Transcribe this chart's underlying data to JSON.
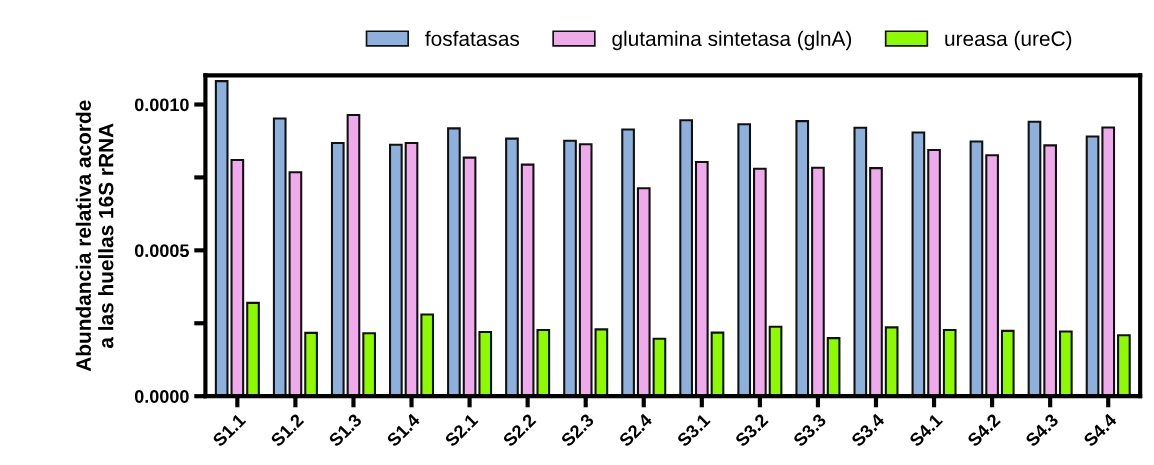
{
  "chart_data": {
    "type": "bar",
    "ylabel": "Abundancia relativa acorde\na las huellas 16S rRNA",
    "categories": [
      "S1.1",
      "S1.2",
      "S1.3",
      "S1.4",
      "S2.1",
      "S2.2",
      "S2.3",
      "S2.4",
      "S3.1",
      "S3.2",
      "S3.3",
      "S3.4",
      "S4.1",
      "S4.2",
      "S4.3",
      "S4.4"
    ],
    "series": [
      {
        "name": "fosfatasas",
        "color": "#8eb0dc",
        "values": [
          0.00108,
          0.000952,
          0.000868,
          0.000862,
          0.000918,
          0.000883,
          0.000876,
          0.000914,
          0.000946,
          0.000932,
          0.000943,
          0.00092,
          0.000904,
          0.000873,
          0.000941,
          0.00089
        ]
      },
      {
        "name": "glutamina sintetasa (glnA)",
        "color": "#eeaaea",
        "values": [
          0.00081,
          0.000768,
          0.000964,
          0.000868,
          0.000818,
          0.000794,
          0.000864,
          0.000713,
          0.000803,
          0.00078,
          0.000783,
          0.000782,
          0.000844,
          0.000826,
          0.00086,
          0.000921
        ]
      },
      {
        "name": "ureasa (ureC)",
        "color": "#8efa00",
        "values": [
          0.00032,
          0.000217,
          0.000216,
          0.00028,
          0.00022,
          0.000227,
          0.000229,
          0.000197,
          0.000218,
          0.000238,
          0.000199,
          0.000236,
          0.000227,
          0.000224,
          0.000222,
          0.000209
        ]
      }
    ],
    "ylim": [
      0,
      0.0011
    ],
    "yticks": [
      {
        "value": 0,
        "label": "0.0000"
      },
      {
        "value": 0.00025,
        "label": null
      },
      {
        "value": 0.0005,
        "label": "0.0005"
      },
      {
        "value": 0.00075,
        "label": null
      },
      {
        "value": 0.001,
        "label": "0.0010"
      }
    ],
    "grid": false,
    "legend": "top"
  }
}
